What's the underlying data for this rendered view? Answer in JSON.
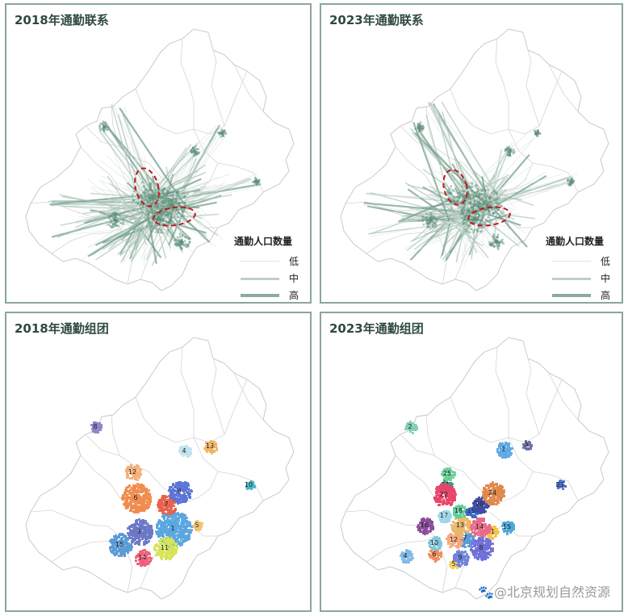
{
  "panels": {
    "p1": {
      "title": "2018年通勤联系"
    },
    "p2": {
      "title": "2023年通勤联系"
    },
    "p3": {
      "title": "2018年通勤组团"
    },
    "p4": {
      "title": "2023年通勤组团"
    }
  },
  "legend": {
    "title": "通勤人口数量",
    "items": [
      {
        "label": "低",
        "color": "#dfe8e3"
      },
      {
        "label": "中",
        "color": "#bcd0c6"
      },
      {
        "label": "高",
        "color": "#8eaa9c"
      }
    ]
  },
  "clusters_2018": [
    {
      "id": "1",
      "color": "#5aa6e0"
    },
    {
      "id": "3",
      "color": "#6b78c7"
    },
    {
      "id": "4",
      "color": "#bfe3f0"
    },
    {
      "id": "5",
      "color": "#f2c26b"
    },
    {
      "id": "6",
      "color": "#f08c4e"
    },
    {
      "id": "7",
      "color": "#e8604d"
    },
    {
      "id": "8",
      "color": "#8d83cc"
    },
    {
      "id": "9",
      "color": "#5b74d6"
    },
    {
      "id": "10",
      "color": "#4fb6c4"
    },
    {
      "id": "11",
      "color": "#d7e35a"
    },
    {
      "id": "12",
      "color": "#f4b07a"
    },
    {
      "id": "13",
      "color": "#f0b45f"
    },
    {
      "id": "14",
      "color": "#ef5f7a"
    },
    {
      "id": "15",
      "color": "#5a9ad6"
    }
  ],
  "clusters_2023": [
    {
      "id": "1",
      "color": "#5ea8e6"
    },
    {
      "id": "2",
      "color": "#7fd0b5"
    },
    {
      "id": "3",
      "color": "#6b6fa8"
    },
    {
      "id": "4",
      "color": "#7fb8e8"
    },
    {
      "id": "5",
      "color": "#f2cf5a"
    },
    {
      "id": "6",
      "color": "#f28c5a"
    },
    {
      "id": "7",
      "color": "#5a9ad6"
    },
    {
      "id": "8",
      "color": "#6f6fd8"
    },
    {
      "id": "9",
      "color": "#6f82d8"
    },
    {
      "id": "10",
      "color": "#7fc7d8"
    },
    {
      "id": "11",
      "color": "#f4c24a"
    },
    {
      "id": "12",
      "color": "#f6a77a"
    },
    {
      "id": "13",
      "color": "#e8b86a"
    },
    {
      "id": "14",
      "color": "#e86a88"
    },
    {
      "id": "15",
      "color": "#4aa7d8"
    },
    {
      "id": "16",
      "color": "#8a4b9a"
    },
    {
      "id": "17",
      "color": "#9ad6e8"
    },
    {
      "id": "18",
      "color": "#5ccf9a"
    },
    {
      "id": "19",
      "color": "#3f67c2"
    },
    {
      "id": "20",
      "color": "#3f4aa0"
    },
    {
      "id": "21",
      "color": "#2f9a8a"
    },
    {
      "id": "22",
      "color": "#e8456a"
    },
    {
      "id": "23",
      "color": "#4e6fd0"
    },
    {
      "id": "24",
      "color": "#e0874a"
    },
    {
      "id": "25",
      "color": "#6fcf9a"
    }
  ],
  "watermark": "🐾@北京规划自然资源"
}
